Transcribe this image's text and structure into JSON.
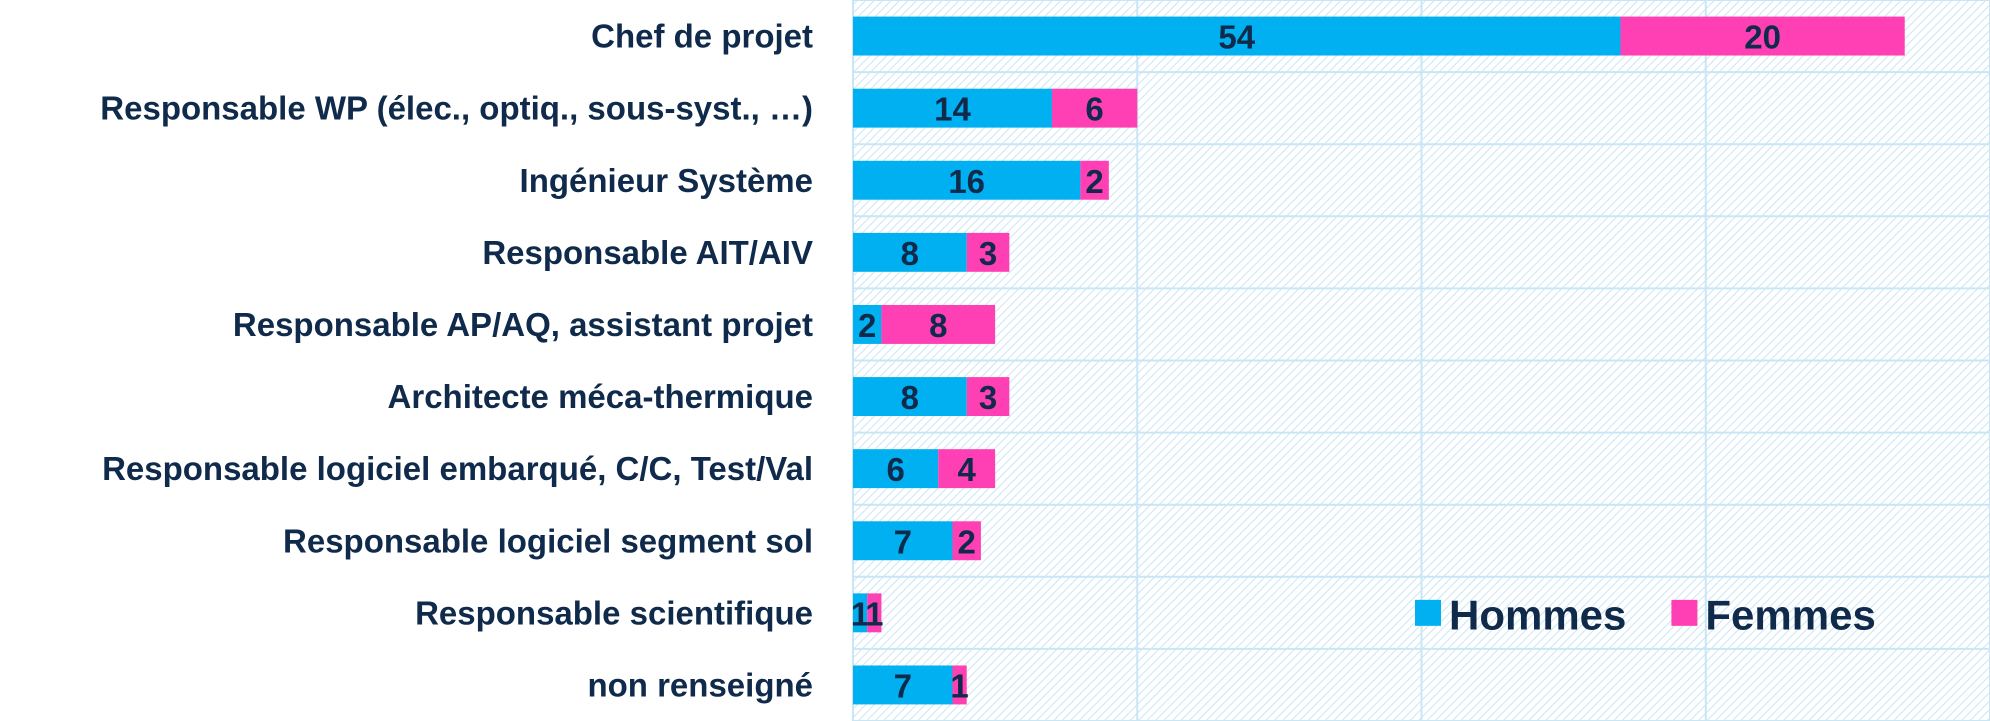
{
  "chart_data": {
    "type": "stacked_barh",
    "categories": [
      "Chef de projet",
      "Responsable WP (élec., optiq., sous-syst., …)",
      "Ingénieur Système",
      "Responsable AIT/AIV",
      "Responsable AP/AQ, assistant projet",
      "Architecte méca-thermique",
      "Responsable logiciel embarqué, C/C, Test/Val",
      "Responsable logiciel segment sol",
      "Responsable scientifique",
      "non renseigné"
    ],
    "series": [
      {
        "name": "Hommes",
        "color": "#00b0f0",
        "values": [
          54,
          14,
          16,
          8,
          2,
          8,
          6,
          7,
          1,
          7
        ]
      },
      {
        "name": "Femmes",
        "color": "#ff3fb4",
        "values": [
          20,
          6,
          2,
          3,
          8,
          3,
          4,
          2,
          1,
          1
        ]
      }
    ],
    "xlim": [
      0,
      80
    ],
    "xticks": [
      0,
      20,
      40,
      60,
      80
    ],
    "grid": true,
    "legend": "lower right"
  }
}
